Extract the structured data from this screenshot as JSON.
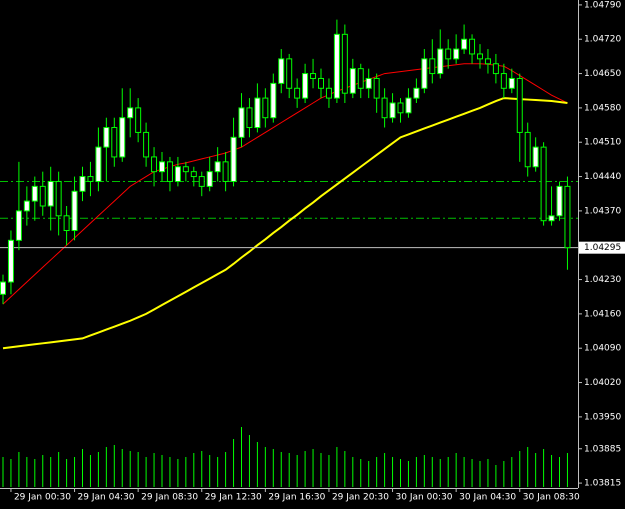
{
  "chart_data": {
    "type": "candlestick",
    "categories": [
      null,
      "29 Jan 00:30",
      null,
      null,
      null,
      null,
      null,
      null,
      null,
      "29 Jan 04:30",
      null,
      null,
      null,
      null,
      null,
      null,
      null,
      "29 Jan 08:30",
      null,
      null,
      null,
      null,
      null,
      null,
      null,
      "29 Jan 12:30",
      null,
      null,
      null,
      null,
      null,
      null,
      null,
      "29 Jan 16:30",
      null,
      null,
      null,
      null,
      null,
      null,
      null,
      "29 Jan 20:30",
      null,
      null,
      null,
      null,
      null,
      null,
      null,
      "30 Jan 00:30",
      null,
      null,
      null,
      null,
      null,
      null,
      null,
      "30 Jan 04:30",
      null,
      null,
      null,
      null,
      null,
      null,
      null,
      "30 Jan 08:30",
      null,
      null,
      null,
      null,
      null,
      null
    ],
    "open": [
      1.042,
      1.04225,
      1.0431,
      1.0437,
      1.0439,
      1.0442,
      1.0438,
      1.0443,
      1.0436,
      1.0433,
      1.0441,
      1.0444,
      1.0443,
      1.045,
      1.0454,
      1.0448,
      1.0456,
      1.0458,
      1.0453,
      1.0448,
      1.0445,
      1.0447,
      1.0443,
      1.0446,
      1.0445,
      1.0444,
      1.0442,
      1.0445,
      1.0447,
      1.0443,
      1.0452,
      1.0458,
      1.0454,
      1.046,
      1.0456,
      1.0463,
      1.0468,
      1.0462,
      1.046,
      1.0465,
      1.0464,
      1.0462,
      1.046,
      1.0473,
      1.0461,
      1.0466,
      1.0462,
      1.0464,
      1.046,
      1.0456,
      1.0459,
      1.0457,
      1.046,
      1.0462,
      1.0468,
      1.0465,
      1.047,
      1.0468,
      1.047,
      1.0472,
      1.0469,
      1.0468,
      1.0467,
      1.0465,
      1.0462,
      1.0464,
      1.0453,
      1.0446,
      1.045,
      1.0435,
      1.0436,
      1.0442
    ],
    "high": [
      1.0424,
      1.0433,
      1.0447,
      1.0442,
      1.0444,
      1.0445,
      1.0446,
      1.0445,
      1.0438,
      1.0444,
      1.0446,
      1.0447,
      1.0454,
      1.0456,
      1.0456,
      1.0462,
      1.0462,
      1.046,
      1.0455,
      1.045,
      1.0449,
      1.0448,
      1.0448,
      1.0447,
      1.0446,
      1.0445,
      1.0448,
      1.045,
      1.0449,
      1.0456,
      1.0461,
      1.046,
      1.0463,
      1.0462,
      1.0465,
      1.047,
      1.0469,
      1.0464,
      1.0467,
      1.0468,
      1.0466,
      1.0464,
      1.0476,
      1.0475,
      1.0468,
      1.0467,
      1.0466,
      1.0465,
      1.0462,
      1.0461,
      1.046,
      1.0462,
      1.0464,
      1.047,
      1.0472,
      1.0474,
      1.0472,
      1.0473,
      1.0475,
      1.0473,
      1.0471,
      1.047,
      1.0469,
      1.0467,
      1.0466,
      1.0465,
      1.0455,
      1.0452,
      1.0451,
      1.0442,
      1.0443,
      1.0444
    ],
    "low": [
      1.0418,
      1.042,
      1.0429,
      1.0434,
      1.0435,
      1.0436,
      1.0433,
      1.0432,
      1.043,
      1.0431,
      1.0439,
      1.044,
      1.0441,
      1.0443,
      1.0446,
      1.0447,
      1.0452,
      1.0451,
      1.0446,
      1.0442,
      1.0443,
      1.0441,
      1.0442,
      1.0443,
      1.0442,
      1.044,
      1.0441,
      1.0443,
      1.0441,
      1.0442,
      1.045,
      1.0452,
      1.0453,
      1.0454,
      1.0455,
      1.0461,
      1.046,
      1.0458,
      1.0459,
      1.0462,
      1.046,
      1.0458,
      1.0459,
      1.0459,
      1.046,
      1.046,
      1.046,
      1.0457,
      1.0454,
      1.0455,
      1.0455,
      1.0456,
      1.0459,
      1.0461,
      1.0463,
      1.0464,
      1.0466,
      1.0467,
      1.0469,
      1.0467,
      1.0466,
      1.0465,
      1.0463,
      1.046,
      1.0461,
      1.0447,
      1.0444,
      1.0445,
      1.0434,
      1.0434,
      1.0435,
      1.0425
    ],
    "close": [
      1.04225,
      1.0431,
      1.0437,
      1.0439,
      1.0442,
      1.0438,
      1.0443,
      1.0436,
      1.0433,
      1.0441,
      1.0444,
      1.0443,
      1.045,
      1.0454,
      1.0448,
      1.0456,
      1.0458,
      1.0453,
      1.0448,
      1.0445,
      1.0447,
      1.0443,
      1.0446,
      1.0445,
      1.0444,
      1.0442,
      1.0445,
      1.0447,
      1.0443,
      1.0452,
      1.0458,
      1.0454,
      1.046,
      1.0456,
      1.0463,
      1.0468,
      1.0462,
      1.046,
      1.0465,
      1.0464,
      1.0462,
      1.046,
      1.0473,
      1.0461,
      1.0466,
      1.0462,
      1.0464,
      1.046,
      1.0456,
      1.0459,
      1.0457,
      1.046,
      1.0462,
      1.0468,
      1.0465,
      1.047,
      1.0468,
      1.047,
      1.0472,
      1.0469,
      1.0468,
      1.0467,
      1.0465,
      1.0462,
      1.0464,
      1.0453,
      1.0446,
      1.045,
      1.0435,
      1.0436,
      1.0442,
      1.04295
    ],
    "volumes": [
      30,
      28,
      35,
      30,
      28,
      32,
      30,
      35,
      28,
      30,
      38,
      32,
      35,
      40,
      42,
      38,
      36,
      35,
      30,
      34,
      32,
      30,
      28,
      30,
      34,
      36,
      32,
      30,
      35,
      48,
      60,
      52,
      45,
      40,
      38,
      35,
      34,
      32,
      36,
      38,
      34,
      32,
      40,
      36,
      30,
      28,
      26,
      30,
      34,
      30,
      28,
      26,
      30,
      32,
      30,
      28,
      30,
      34,
      30,
      28,
      26,
      28,
      22,
      26,
      30,
      36,
      40,
      34,
      38,
      32,
      30,
      34
    ],
    "ma_lines": [
      {
        "color": "#ff0000",
        "values": [
          1.0418,
          1.04195,
          1.0421,
          1.04225,
          1.0424,
          1.04255,
          1.0427,
          1.04285,
          1.043,
          1.04315,
          1.0433,
          1.04345,
          1.0436,
          1.04375,
          1.0439,
          1.04405,
          1.0442,
          1.0443,
          1.0444,
          1.0445,
          1.04455,
          1.0446,
          1.04465,
          1.04468,
          1.04472,
          1.04476,
          1.0448,
          1.04484,
          1.04488,
          1.04494,
          1.045,
          1.0451,
          1.0452,
          1.0453,
          1.0454,
          1.0455,
          1.0456,
          1.0457,
          1.0458,
          1.0459,
          1.046,
          1.04607,
          1.04614,
          1.0462,
          1.04626,
          1.04632,
          1.04638,
          1.04644,
          1.0465,
          1.04652,
          1.04654,
          1.04656,
          1.04658,
          1.0466,
          1.04662,
          1.04664,
          1.04666,
          1.04668,
          1.0467,
          1.0467,
          1.0467,
          1.04669,
          1.04667,
          1.04665,
          1.04656,
          1.04646,
          1.04636,
          1.04626,
          1.04616,
          1.04606,
          1.04598,
          1.0459
        ]
      },
      {
        "color": "#ffff00",
        "values": [
          1.0409,
          1.04092,
          1.04094,
          1.04096,
          1.04098,
          1.041,
          1.04102,
          1.04104,
          1.04106,
          1.04108,
          1.0411,
          1.04116,
          1.04122,
          1.04128,
          1.04134,
          1.0414,
          1.04146,
          1.04153,
          1.0416,
          1.04169,
          1.04178,
          1.04187,
          1.04196,
          1.04205,
          1.04214,
          1.04223,
          1.04232,
          1.04241,
          1.0425,
          1.04262,
          1.04275,
          1.04287,
          1.043,
          1.04312,
          1.04325,
          1.04337,
          1.0435,
          1.04362,
          1.04375,
          1.04387,
          1.044,
          1.04412,
          1.04424,
          1.04436,
          1.04448,
          1.0446,
          1.04472,
          1.04484,
          1.04496,
          1.04508,
          1.0452,
          1.04526,
          1.04532,
          1.04538,
          1.04544,
          1.0455,
          1.04556,
          1.04562,
          1.04568,
          1.04574,
          1.0458,
          1.04587,
          1.04594,
          1.046,
          1.04599,
          1.04598,
          1.04597,
          1.04596,
          1.04595,
          1.04594,
          1.04592,
          1.0459
        ]
      }
    ],
    "levels": [
      1.0443,
      1.04355
    ],
    "current_price": 1.04295,
    "ylim": [
      1.03805,
      1.048
    ],
    "yticks": [
      {
        "value": 1.0479,
        "label": "1.04790"
      },
      {
        "value": 1.0472,
        "label": "1.04720"
      },
      {
        "value": 1.0465,
        "label": "1.04650"
      },
      {
        "value": 1.0458,
        "label": "1.04580"
      },
      {
        "value": 1.0451,
        "label": "1.04510"
      },
      {
        "value": 1.0444,
        "label": "1.04440"
      },
      {
        "value": 1.0437,
        "label": "1.04370"
      },
      {
        "value": 1.0423,
        "label": "1.04230"
      },
      {
        "value": 1.0416,
        "label": "1.04160"
      },
      {
        "value": 1.0409,
        "label": "1.04090"
      },
      {
        "value": 1.0402,
        "label": "1.04020"
      },
      {
        "value": 1.0395,
        "label": "1.03950"
      },
      1.03885,
      1.03815
    ],
    "wick_color": "#00ff00",
    "bull_fill": "#ffffff",
    "bear_fill": "#000000",
    "level_color": "#00c000"
  }
}
